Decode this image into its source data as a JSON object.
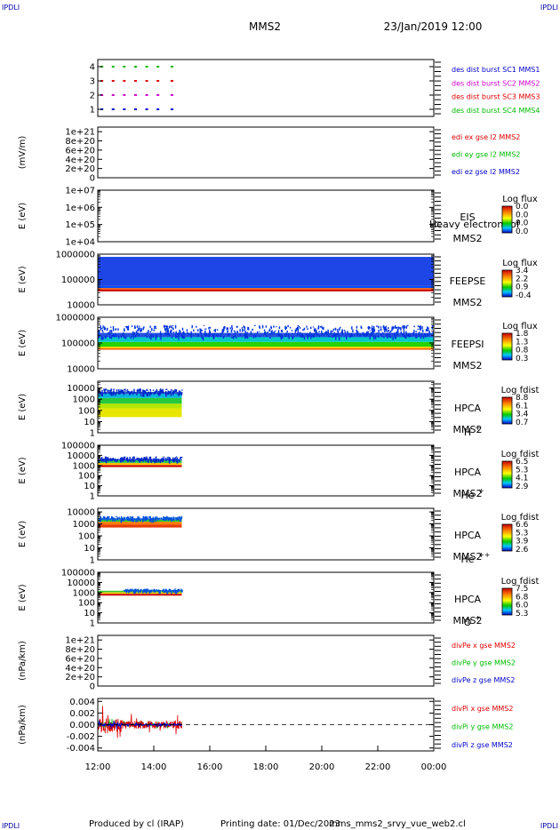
{
  "header": {
    "corner_left_top": "IPDLI",
    "corner_right_top": "IPDLI",
    "corner_left_bottom": "IPDLI",
    "corner_right_bottom": "IPDLI",
    "spacecraft": "MMS2",
    "datetime": "23/Jan/2019 12:00"
  },
  "footer": {
    "produced_by": "Produced by cl (IRAP)",
    "printing_date": "Printing date: 01/Dec/2023",
    "filename": "mms_mms2_srvy_vue_web2.cl"
  },
  "colors": {
    "red": "#dd0000",
    "green": "#00bb00",
    "blue": "#0000cc",
    "magenta": "#cc00cc"
  },
  "x_axis": {
    "range_hours": [
      12,
      24
    ],
    "ticks": [
      {
        "hour": 12,
        "label": "12:00"
      },
      {
        "hour": 14,
        "label": "14:00"
      },
      {
        "hour": 16,
        "label": "16:00"
      },
      {
        "hour": 18,
        "label": "18:00"
      },
      {
        "hour": 20,
        "label": "20:00"
      },
      {
        "hour": 22,
        "label": "22:00"
      },
      {
        "hour": 24,
        "label": "00:00"
      }
    ]
  },
  "chart_data": [
    {
      "id": "burst",
      "type": "scatter",
      "yticks": [
        "1",
        "2",
        "3",
        "4"
      ],
      "ylim": [
        0.5,
        4.5
      ],
      "legend": [
        {
          "label": "des dist burst SC1 MMS1",
          "color": "#0000cc"
        },
        {
          "label": "des dist burst SC2 MMS2",
          "color": "#cc00cc"
        },
        {
          "label": "des dist burst SC3 MMS3",
          "color": "#dd0000"
        },
        {
          "label": "des dist burst SC4 MMS4",
          "color": "#00bb00"
        }
      ],
      "series": [
        {
          "level": 4,
          "color": "#00bb00",
          "x": [
            12.1,
            12.5,
            12.9,
            13.3,
            13.7,
            14.1,
            14.6
          ]
        },
        {
          "level": 3,
          "color": "#dd0000",
          "x": [
            12.1,
            12.5,
            12.9,
            13.3,
            13.7,
            14.1,
            14.6
          ]
        },
        {
          "level": 2,
          "color": "#cc00cc",
          "x": [
            12.1,
            12.5,
            12.9,
            13.3,
            13.7,
            14.1,
            14.6
          ]
        },
        {
          "level": 1,
          "color": "#0000cc",
          "x": [
            12.1,
            12.5,
            12.9,
            13.3,
            13.7,
            14.1,
            14.6
          ]
        }
      ]
    },
    {
      "id": "edi",
      "type": "line",
      "ylabel": "(mV/m)",
      "yticks": [
        "0",
        "2e+20",
        "4e+20",
        "6e+20",
        "8e+20",
        "1e+21"
      ],
      "ylim": [
        0,
        1.1e+21
      ],
      "zero_line": true,
      "legend": [
        {
          "label": "edi ex gse l2 MMS2",
          "color": "#dd0000"
        },
        {
          "label": "edi ey gse l2 MMS2",
          "color": "#00bb00"
        },
        {
          "label": "edi ez gse l2 MMS2",
          "color": "#0000cc"
        }
      ]
    },
    {
      "id": "eis",
      "type": "heatmap",
      "ylabel": "E (eV)",
      "yscale": "log",
      "yticks": [
        "1e+04",
        "1e+05",
        "1e+06",
        "1e+07"
      ],
      "ylim": [
        10000,
        10000000
      ],
      "instrument": "EIS",
      "species": "Heavy electron tof",
      "sc": "MMS2",
      "colorbar": {
        "title": "Log flux",
        "ticks": [
          "0.0",
          "0.0",
          "0.0",
          "0.0"
        ]
      },
      "bands": []
    },
    {
      "id": "feepse",
      "type": "heatmap",
      "ylabel": "E (eV)",
      "yscale": "log",
      "yticks": [
        "10000",
        "100000",
        "1000000"
      ],
      "ylim": [
        10000,
        1000000
      ],
      "instrument": "FEEPSE",
      "sc": "MMS2",
      "colorbar": {
        "title": "Log flux",
        "ticks": [
          "3.4",
          "2.2",
          "0.9",
          "-0.4"
        ]
      },
      "bands": [
        {
          "x0": 12,
          "x1": 24,
          "e_low": 34000,
          "e_high": 40000,
          "color": "#c80000"
        },
        {
          "x0": 12,
          "x1": 24,
          "e_low": 40000,
          "e_high": 46000,
          "color": "#ff5a00"
        },
        {
          "x0": 12,
          "x1": 24,
          "e_low": 46000,
          "e_high": 55000,
          "color": "#0050ff"
        },
        {
          "x0": 12,
          "x1": 24,
          "e_low": 55000,
          "e_high": 780000,
          "color": "#1e46e6"
        }
      ]
    },
    {
      "id": "feepsi",
      "type": "heatmap",
      "ylabel": "E (eV)",
      "yscale": "log",
      "yticks": [
        "10000",
        "100000",
        "1000000"
      ],
      "ylim": [
        10000,
        1000000
      ],
      "instrument": "FEEPSI",
      "sc": "MMS2",
      "colorbar": {
        "title": "Log flux",
        "ticks": [
          "1.8",
          "1.3",
          "0.8",
          "0.3"
        ]
      },
      "bands": [
        {
          "x0": 12,
          "x1": 24,
          "e_low": 55000,
          "e_high": 62000,
          "color": "#ff5a00"
        },
        {
          "x0": 12,
          "x1": 24,
          "e_low": 62000,
          "e_high": 72000,
          "color": "#ffd200"
        },
        {
          "x0": 12,
          "x1": 24,
          "e_low": 72000,
          "e_high": 110000,
          "color": "#28d200"
        },
        {
          "x0": 12,
          "x1": 24,
          "e_low": 110000,
          "e_high": 170000,
          "color": "#00c8c8"
        },
        {
          "x0": 12,
          "x1": 24,
          "e_low": 170000,
          "e_high": 500000,
          "color": "#0032dc",
          "speckle": true
        }
      ]
    },
    {
      "id": "hpca_h",
      "type": "heatmap",
      "ylabel": "E (eV)",
      "yscale": "log",
      "yticks": [
        "1",
        "10",
        "100",
        "1000",
        "10000"
      ],
      "ylim": [
        1,
        40000
      ],
      "instrument": "HPCA",
      "sc": "MMS2",
      "species": "H",
      "species_sup": "+",
      "colorbar": {
        "title": "Log fdist",
        "ticks": [
          "8.8",
          "6.1",
          "3.4",
          "0.7"
        ]
      },
      "bands": [
        {
          "x0": 12.0,
          "x1": 15.0,
          "e_low": 25,
          "e_high": 150,
          "color": "#e6e600"
        },
        {
          "x0": 12.0,
          "x1": 15.0,
          "e_low": 150,
          "e_high": 400,
          "color": "#b4e600"
        },
        {
          "x0": 12.0,
          "x1": 15.0,
          "e_low": 400,
          "e_high": 1300,
          "color": "#28c83c"
        },
        {
          "x0": 12.0,
          "x1": 15.0,
          "e_low": 1300,
          "e_high": 3000,
          "color": "#00b4dc"
        },
        {
          "x0": 12.0,
          "x1": 15.0,
          "e_low": 3000,
          "e_high": 9000,
          "color": "#0028c8",
          "speckle": true
        }
      ]
    },
    {
      "id": "hpca_he",
      "type": "heatmap",
      "ylabel": "E (eV)",
      "yscale": "log",
      "yticks": [
        "1",
        "10",
        "100",
        "1000",
        "10000",
        "100000"
      ],
      "ylim": [
        1,
        100000
      ],
      "instrument": "HPCA",
      "sc": "MMS2",
      "species": "He",
      "species_sup": "+",
      "colorbar": {
        "title": "Log fdist",
        "ticks": [
          "6.5",
          "5.3",
          "4.1",
          "2.9"
        ]
      },
      "bands": [
        {
          "x0": 12.0,
          "x1": 15.0,
          "e_low": 700,
          "e_high": 1100,
          "color": "#c80000"
        },
        {
          "x0": 12.0,
          "x1": 15.0,
          "e_low": 1100,
          "e_high": 1800,
          "color": "#ffbe00"
        },
        {
          "x0": 12.0,
          "x1": 15.0,
          "e_low": 1800,
          "e_high": 3200,
          "color": "#28c850"
        },
        {
          "x0": 12.0,
          "x1": 15.0,
          "e_low": 3200,
          "e_high": 8000,
          "color": "#0028c8",
          "speckle": true
        }
      ]
    },
    {
      "id": "hpca_he2",
      "type": "heatmap",
      "ylabel": "E (eV)",
      "yscale": "log",
      "yticks": [
        "1",
        "10",
        "100",
        "1000",
        "10000"
      ],
      "ylim": [
        1,
        20000
      ],
      "instrument": "HPCA",
      "sc": "MMS2",
      "species": "He",
      "species_sup": "++",
      "colorbar": {
        "title": "Log fdist",
        "ticks": [
          "6.6",
          "5.3",
          "3.9",
          "2.6"
        ]
      },
      "bands": [
        {
          "x0": 12.0,
          "x1": 15.0,
          "e_low": 500,
          "e_high": 900,
          "color": "#e63c00"
        },
        {
          "x0": 12.0,
          "x1": 15.0,
          "e_low": 900,
          "e_high": 1500,
          "color": "#ff7800"
        },
        {
          "x0": 12.0,
          "x1": 15.0,
          "e_low": 1500,
          "e_high": 2300,
          "color": "#32c832"
        },
        {
          "x0": 12.0,
          "x1": 15.0,
          "e_low": 2300,
          "e_high": 4500,
          "color": "#0050dc",
          "speckle": true
        }
      ]
    },
    {
      "id": "hpca_o",
      "type": "heatmap",
      "ylabel": "E (eV)",
      "yscale": "log",
      "yticks": [
        "1",
        "10",
        "100",
        "1000",
        "10000",
        "100000"
      ],
      "ylim": [
        1,
        100000
      ],
      "instrument": "HPCA",
      "sc": "MMS2",
      "species": "O",
      "species_sup": "+",
      "colorbar": {
        "title": "Log fdist",
        "ticks": [
          "7.5",
          "6.8",
          "6.0",
          "5.3"
        ]
      },
      "bands": [
        {
          "x0": 12.0,
          "x1": 15.0,
          "e_low": 500,
          "e_high": 750,
          "color": "#c80000"
        },
        {
          "x0": 12.0,
          "x1": 15.0,
          "e_low": 750,
          "e_high": 1100,
          "color": "#e6c800"
        },
        {
          "x0": 12.0,
          "x1": 15.0,
          "e_low": 1100,
          "e_high": 1500,
          "color": "#32c832"
        },
        {
          "x0": 12.9,
          "x1": 15.0,
          "e_low": 1500,
          "e_high": 2400,
          "color": "#0050dc",
          "speckle": true
        }
      ]
    },
    {
      "id": "divpe",
      "type": "line",
      "ylabel": "(nPa/km)",
      "yticks": [
        "0",
        "2e+20",
        "4e+20",
        "6e+20",
        "8e+20",
        "1e+21"
      ],
      "ylim": [
        0,
        1.1e+21
      ],
      "zero_line": true,
      "legend": [
        {
          "label": "divPe x gse MMS2",
          "color": "#dd0000"
        },
        {
          "label": "divPe y gse MMS2",
          "color": "#00bb00"
        },
        {
          "label": "divPe z gse MMS2",
          "color": "#0000cc"
        }
      ]
    },
    {
      "id": "divpi",
      "type": "line",
      "ylabel": "(nPa/km)",
      "yticks": [
        "-0.004",
        "-0.002",
        "0.000",
        "0.002",
        "0.004"
      ],
      "ylim": [
        -0.0045,
        0.0045
      ],
      "zero_line": true,
      "legend": [
        {
          "label": "divPi x gse MMS2",
          "color": "#dd0000"
        },
        {
          "label": "divPi y gse MMS2",
          "color": "#00bb00"
        },
        {
          "label": "divPi z gse MMS2",
          "color": "#0000cc"
        }
      ],
      "series": [
        {
          "name": "divPi y gse MMS2",
          "color": "#00bb00",
          "x0": 12.0,
          "x1": 15.0,
          "amp": 0.0012
        },
        {
          "name": "divPi x gse MMS2",
          "color": "#dd0000",
          "x0": 12.0,
          "x1": 15.0,
          "amp": 0.0035
        },
        {
          "name": "divPi z gse MMS2",
          "color": "#0000cc",
          "x0": 12.0,
          "x1": 15.0,
          "amp": 0.0008
        }
      ]
    }
  ]
}
